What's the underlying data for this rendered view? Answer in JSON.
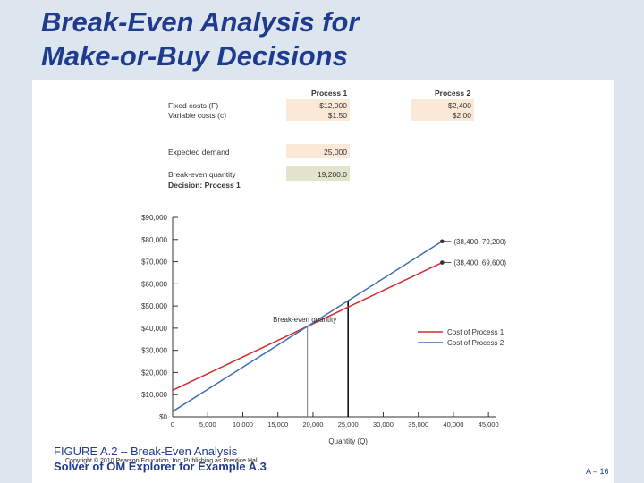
{
  "slide": {
    "title_line1": "Break-Even Analysis for",
    "title_line2": "Make-or-Buy Decisions",
    "caption": "FIGURE A.2 – Break-Even Analysis",
    "copyright": "Copyright © 2010 Pearson Education, Inc. Publishing as Prentice Hall.",
    "subcaption": "Solver of OM Explorer for Example A.3",
    "page_number": "A – 16"
  },
  "table": {
    "col1_header": "Process 1",
    "col2_header": "Process 2",
    "rows": [
      {
        "label": "Fixed costs (F)",
        "p1": "$12,000",
        "p2": "$2,400"
      },
      {
        "label": "Variable costs (c)",
        "p1": "$1.50",
        "p2": "$2.00"
      }
    ],
    "demand_label": "Expected demand",
    "demand_value": "25,000",
    "breakeven_label": "Break-even quantity",
    "breakeven_value": "19,200.0",
    "decision_label": "Decision: Process 1"
  },
  "chart_data": {
    "type": "line",
    "title": "",
    "xlabel": "Quantity (Q)",
    "ylabel": "",
    "xlim": [
      0,
      46000
    ],
    "ylim": [
      0,
      90000
    ],
    "x_ticks": [
      0,
      5000,
      10000,
      15000,
      20000,
      25000,
      30000,
      35000,
      40000,
      45000
    ],
    "x_tick_labels": [
      "0",
      "5,000",
      "10,000",
      "15,000",
      "20,000",
      "25,000",
      "30,000",
      "35,000",
      "40,000",
      "45,000"
    ],
    "y_ticks": [
      0,
      10000,
      20000,
      30000,
      40000,
      50000,
      60000,
      70000,
      80000,
      90000
    ],
    "y_tick_labels": [
      "$0",
      "$10,000",
      "$20,000",
      "$30,000",
      "$40,000",
      "$50,000",
      "$60,000",
      "$70,000",
      "$80,000",
      "$90,000"
    ],
    "series": [
      {
        "name": "Cost of Process 1",
        "color": "#d42b2b",
        "x": [
          0,
          38400
        ],
        "y": [
          12000,
          69600
        ]
      },
      {
        "name": "Cost of Process 2",
        "color": "#3b6fb6",
        "x": [
          0,
          38400
        ],
        "y": [
          2400,
          79200
        ]
      }
    ],
    "breakeven_x": 19200,
    "demand_x": 25000,
    "annotations": [
      {
        "text": "Break-even quantity"
      },
      {
        "text": "(38,400, 79,200)",
        "x": 38400,
        "y": 79200
      },
      {
        "text": "(38,400, 69,600)",
        "x": 38400,
        "y": 69600
      }
    ],
    "legend_position": "right",
    "grid": false
  }
}
